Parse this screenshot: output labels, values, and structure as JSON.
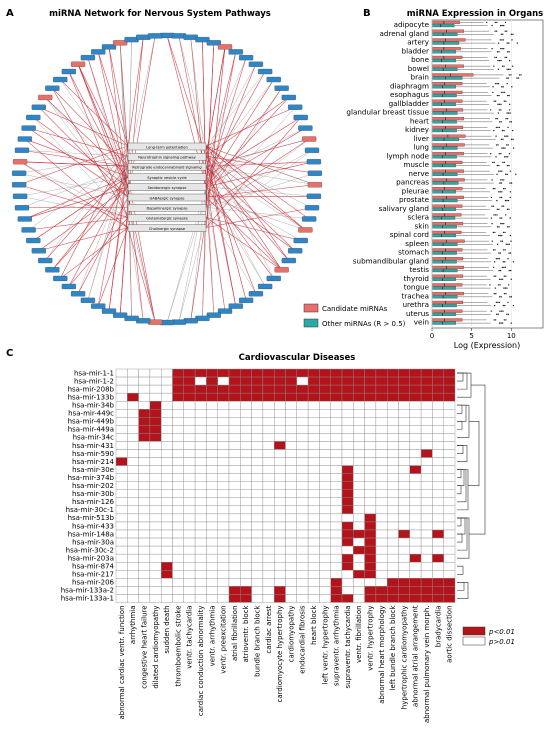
{
  "panels": {
    "a": {
      "letter": "A",
      "title": "miRNA Network for Nervous System Pathways"
    },
    "b": {
      "letter": "B",
      "title": "miRNA Expression in Organs"
    },
    "c": {
      "letter": "C",
      "title": "Cardiovascular Diseases"
    }
  },
  "colors": {
    "candidate": "#e8706b",
    "other": "#2aa9a6",
    "node_blue": "#2f86c6",
    "edge_red": "#c8202a",
    "edge_gray": "#9a9a9a",
    "heat_sig": "#b3141b",
    "heat_ns": "#ffffff",
    "grid": "#8a8a8a"
  },
  "chart_data": [
    {
      "type": "network",
      "title": "miRNA Network for Nervous System Pathways",
      "pathways": [
        "Long-term potentiation",
        "Neurotrophin signaling pathway",
        "Retrograde endocannabinoid signaling",
        "Synaptic vesicle cycle",
        "Serotonergic synapse",
        "GABAergic synapse",
        "Dopaminergic synapse",
        "Glutamatergic synapse",
        "Cholinergic synapse"
      ],
      "ring_node_count": 78,
      "candidate_ring_positions": [
        5,
        16,
        20,
        24,
        28,
        40,
        60,
        66,
        70,
        74
      ],
      "legend": [
        "Candidate miRNAs",
        "Other miRNAs (R > 0.5)"
      ],
      "legend_position": "bottom-right"
    },
    {
      "type": "boxplot",
      "title": "miRNA Expression in Organs",
      "xlabel": "Log (Expression)",
      "xlim": [
        0,
        14
      ],
      "xticks": [
        0,
        5,
        10
      ],
      "categories": [
        "adipocyte",
        "adrenal gland",
        "artery",
        "bladder",
        "bone",
        "bowel",
        "brain",
        "diaphragm",
        "esophagus",
        "gallbladder",
        "glandular breast tissue",
        "heart",
        "kidney",
        "liver",
        "lung",
        "lymph node",
        "muscle",
        "nerve",
        "pancreas",
        "pleurae",
        "prostate",
        "salivary gland",
        "sclera",
        "skin",
        "spinal cord",
        "spleen",
        "stomach",
        "submandibular gland",
        "testis",
        "thyroid",
        "tongue",
        "trachea",
        "urethra",
        "uterus",
        "vein"
      ],
      "series": [
        {
          "name": "Candidate miRNAs",
          "median": [
            1.5,
            1.8,
            1.7,
            1.5,
            1.5,
            1.7,
            2.3,
            1.6,
            1.6,
            1.6,
            1.8,
            1.7,
            1.7,
            2.0,
            1.8,
            1.7,
            1.7,
            1.7,
            1.8,
            1.6,
            1.8,
            1.6,
            1.6,
            1.7,
            1.6,
            1.8,
            1.7,
            1.7,
            1.8,
            1.6,
            1.6,
            1.7,
            1.7,
            1.6,
            1.6
          ],
          "q3": [
            3.5,
            4.0,
            4.2,
            3.6,
            3.8,
            4.0,
            5.2,
            3.8,
            3.8,
            3.8,
            3.9,
            4.0,
            3.9,
            4.2,
            4.1,
            4.0,
            3.8,
            4.0,
            4.1,
            3.8,
            4.0,
            3.8,
            3.7,
            3.9,
            3.7,
            4.1,
            3.8,
            3.9,
            4.0,
            3.9,
            3.8,
            4.0,
            3.9,
            3.8,
            3.8
          ],
          "whisker_high": [
            6.5,
            7.2,
            7.5,
            7.0,
            7.0,
            7.4,
            9.0,
            6.9,
            7.1,
            6.9,
            7.0,
            7.3,
            7.0,
            7.5,
            7.2,
            7.0,
            6.9,
            7.3,
            7.0,
            6.8,
            7.1,
            6.8,
            6.7,
            7.0,
            6.8,
            7.2,
            7.0,
            7.0,
            7.2,
            6.9,
            6.9,
            7.1,
            7.0,
            6.9,
            6.9
          ]
        },
        {
          "name": "Other miRNAs (R > 0.5)",
          "median": [
            1.1,
            1.4,
            1.5,
            1.2,
            1.2,
            1.4,
            1.7,
            1.3,
            1.3,
            1.2,
            1.4,
            1.3,
            1.3,
            1.5,
            1.4,
            1.3,
            1.3,
            1.4,
            1.5,
            1.3,
            1.4,
            1.3,
            1.2,
            1.3,
            1.2,
            1.4,
            1.3,
            1.3,
            1.4,
            1.3,
            1.3,
            1.4,
            1.3,
            1.3,
            1.3
          ],
          "q3": [
            2.8,
            3.2,
            3.4,
            3.0,
            3.0,
            3.2,
            3.8,
            3.0,
            3.1,
            3.0,
            3.2,
            3.1,
            3.1,
            3.4,
            3.2,
            3.1,
            3.0,
            3.2,
            3.3,
            3.0,
            3.2,
            3.0,
            2.9,
            3.1,
            3.0,
            3.2,
            3.1,
            3.1,
            3.2,
            3.0,
            3.0,
            3.2,
            3.1,
            3.0,
            3.0
          ],
          "whisker_high": [
            7.0,
            7.8,
            8.0,
            7.5,
            7.2,
            7.8,
            8.5,
            7.3,
            7.5,
            7.2,
            7.8,
            7.6,
            7.4,
            8.0,
            7.7,
            7.5,
            7.3,
            7.8,
            7.8,
            7.3,
            7.6,
            7.3,
            7.1,
            7.5,
            7.3,
            7.7,
            7.5,
            7.5,
            7.7,
            7.4,
            7.4,
            7.6,
            7.5,
            7.4,
            7.4
          ]
        }
      ],
      "legend_position": "none"
    },
    {
      "type": "heatmap",
      "title": "Cardiovascular Diseases",
      "rows": [
        "hsa-mir-1-1",
        "hsa-mir-1-2",
        "hsa-mir-208b",
        "hsa-mir-133b",
        "hsa-mir-34b",
        "hsa-mir-449c",
        "hsa-mir-449b",
        "hsa-mir-449a",
        "hsa-mir-34c",
        "hsa-mir-431",
        "hsa-mir-590",
        "hsa-mir-214",
        "hsa-mir-30e",
        "hsa-mir-374b",
        "hsa-mir-202",
        "hsa-mir-30b",
        "hsa-mir-126",
        "hsa-mir-30c-1",
        "hsa-mir-513b",
        "hsa-mir-433",
        "hsa-mir-148a",
        "hsa-mir-30a",
        "hsa-mir-30c-2",
        "hsa-mir-203a",
        "hsa-mir-874",
        "hsa-mir-217",
        "hsa-mir-206",
        "hsa-mir-133a-2",
        "hsa-mir-133a-1"
      ],
      "columns": [
        "abnormal cardiac ventr. function",
        "arrhythmia",
        "congestive heart failure",
        "dilated cardiomyopathy",
        "sudden death",
        "thromboembolic stroke",
        "ventr. tachycardia",
        "cardiac conduction abnormality",
        "ventr. arrhythmia",
        "ventr. preexcitation",
        "atrial fibrillation",
        "atrioventr. block",
        "bundle branch block",
        "cardiac arrest",
        "cardiomyocyte hypertrophy",
        "cardiomyopathy",
        "endocardial fibrosis",
        "heart block",
        "left ventr. hypertrophy",
        "supraventr. arrhythmia",
        "supraventr. tachycardia",
        "ventr. fibrillation",
        "ventr. hypertrophy",
        "abnormal heart morphology",
        "left bundle branch block",
        "hypertrophic cardiomyopathy",
        "abnormal atrial arrangement",
        "abnormal pulmonary vein morph.",
        "bradycardia",
        "aortic dissection"
      ],
      "significant": [
        [
          5,
          6,
          7,
          8,
          9,
          10,
          11,
          12,
          13,
          14,
          15,
          16,
          17,
          18,
          19,
          20,
          21,
          22,
          23,
          24,
          25,
          26,
          27,
          28,
          29
        ],
        [
          5,
          6,
          8,
          10,
          11,
          12,
          13,
          14,
          15,
          17,
          18,
          19,
          20,
          21,
          22,
          23,
          24,
          25,
          26,
          27,
          28,
          29
        ],
        [
          5,
          6,
          7,
          8,
          9,
          10,
          11,
          12,
          13,
          14,
          15,
          16,
          17,
          18,
          19,
          20,
          21,
          22,
          23,
          24,
          25,
          26,
          27,
          28,
          29
        ],
        [
          1,
          5,
          6,
          7,
          8,
          9,
          10,
          11,
          12,
          13,
          14,
          15,
          16,
          17,
          18,
          19,
          20,
          21,
          22,
          23,
          24,
          25,
          26,
          27,
          28,
          29
        ],
        [
          3
        ],
        [
          2,
          3
        ],
        [
          2,
          3
        ],
        [
          2,
          3
        ],
        [
          2,
          3
        ],
        [
          14
        ],
        [
          27
        ],
        [
          0
        ],
        [
          20,
          26
        ],
        [
          20
        ],
        [
          20
        ],
        [
          20
        ],
        [
          20
        ],
        [
          20
        ],
        [
          22
        ],
        [
          20,
          22
        ],
        [
          20,
          21,
          22,
          25,
          28
        ],
        [
          20,
          22
        ],
        [
          21,
          22
        ],
        [
          20,
          22,
          26,
          28
        ],
        [
          4,
          20,
          22
        ],
        [
          4,
          21,
          22
        ],
        [
          19,
          24,
          25,
          26,
          27,
          28,
          29
        ],
        [
          10,
          11,
          14,
          19,
          22,
          23,
          24,
          25,
          26,
          27,
          28,
          29
        ],
        [
          10,
          11,
          14,
          19,
          20,
          22,
          23,
          24,
          25,
          26,
          27,
          28,
          29
        ]
      ],
      "legend": [
        "p<0.01",
        "p>0.01"
      ],
      "legend_position": "bottom-right"
    }
  ]
}
